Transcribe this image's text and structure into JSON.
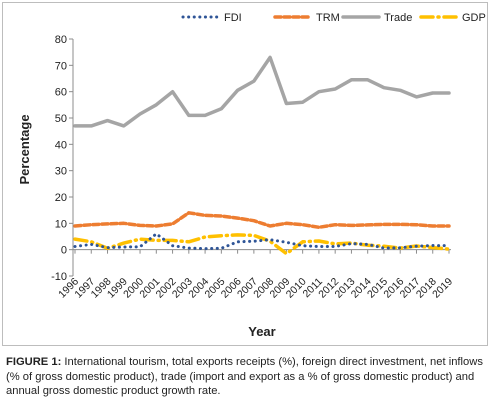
{
  "chart_data": {
    "type": "line",
    "title": "",
    "xlabel": "Year",
    "ylabel": "Percentage",
    "ylim": [
      -10,
      80
    ],
    "yticks": [
      -10,
      0,
      10,
      20,
      30,
      40,
      50,
      60,
      70,
      80
    ],
    "grid": false,
    "legend_position": "top-right",
    "x": [
      "1996",
      "1997",
      "1998",
      "1999",
      "2000",
      "2001",
      "2002",
      "2003",
      "2004",
      "2005",
      "2006",
      "2007",
      "2008",
      "2009",
      "2010",
      "2011",
      "2012",
      "2013",
      "2014",
      "2015",
      "2016",
      "2017",
      "2018",
      "2019"
    ],
    "series": [
      {
        "name": "FDI",
        "style": "dotted",
        "color": "#2f5597",
        "values": [
          1.2,
          2.0,
          0.8,
          1.0,
          1.1,
          6.0,
          1.5,
          0.6,
          0.4,
          0.5,
          3.0,
          3.2,
          3.8,
          2.8,
          1.5,
          1.2,
          1.2,
          2.3,
          2.0,
          0.6,
          0.7,
          1.3,
          1.6,
          1.5
        ]
      },
      {
        "name": "TRM",
        "style": "dashed",
        "color": "#ed7d31",
        "values": [
          9.0,
          9.5,
          9.8,
          10.0,
          9.2,
          9.0,
          9.8,
          14.0,
          13.0,
          12.8,
          12.0,
          11.0,
          9.0,
          10.0,
          9.5,
          8.5,
          9.5,
          9.2,
          9.4,
          9.6,
          9.6,
          9.5,
          9.0,
          9.0
        ]
      },
      {
        "name": "Trade",
        "style": "solid",
        "color": "#a5a5a5",
        "values": [
          47.0,
          47.0,
          49.0,
          47.0,
          51.5,
          55.0,
          60.0,
          51.0,
          51.0,
          53.5,
          60.5,
          64.0,
          73.0,
          55.5,
          56.0,
          60.0,
          61.0,
          64.5,
          64.5,
          61.5,
          60.5,
          58.0,
          59.5,
          59.5
        ]
      },
      {
        "name": "GDP",
        "style": "dash-dot",
        "color": "#ffc000",
        "values": [
          4.0,
          3.0,
          0.5,
          2.5,
          4.0,
          3.5,
          3.5,
          3.0,
          4.8,
          5.3,
          5.6,
          5.4,
          3.2,
          -1.5,
          3.0,
          3.3,
          2.2,
          2.5,
          1.7,
          1.3,
          0.6,
          1.4,
          0.8,
          0.2
        ]
      }
    ]
  },
  "caption": {
    "label": "FIGURE 1:",
    "text": " International tourism, total exports receipts (%), foreign direct investment, net inflows (% of gross domestic product), trade (import and export as a % of gross domestic product) and annual gross domestic product growth rate."
  }
}
